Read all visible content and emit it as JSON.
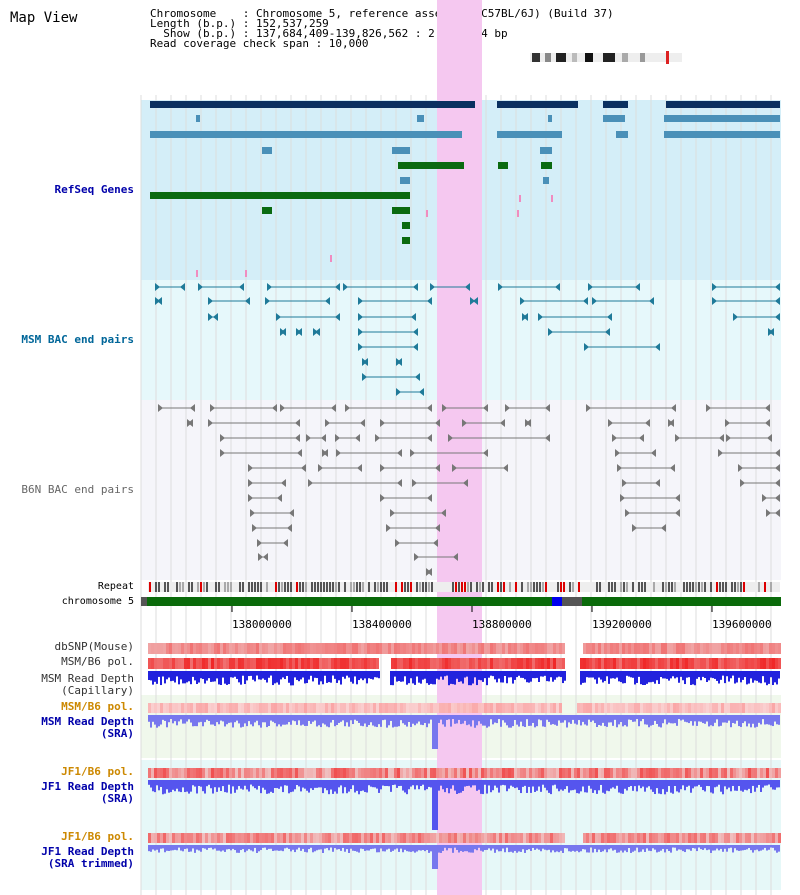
{
  "header": {
    "title": "Map View",
    "info_lines": [
      "Chromosome    : Chromosome 5, reference assembly (C57BL/6J) (Build 37)",
      "Length (b.p.) : 152,537,259",
      "  Show (b.p.) : 137,684,409-139,826,562 : 2,142,154 bp",
      "Read coverage check span : 10,000"
    ]
  },
  "tracks": {
    "refseq": {
      "label": "RefSeq Genes",
      "color": "#0000aa"
    },
    "msm_bac": {
      "label": "MSM BAC end pairs",
      "color": "#006699"
    },
    "b6n_bac": {
      "label": "B6N BAC end pairs",
      "color": "#555555"
    },
    "repeat": {
      "label": "Repeat",
      "color": "#000000"
    },
    "chromosome": {
      "label": "chromosome 5",
      "color": "#000000"
    },
    "dbsnp": {
      "label": "dbSNP(Mouse)",
      "color": "#333333"
    },
    "msm_b6_pol": {
      "label": "MSM/B6 pol.",
      "color": "#333333"
    },
    "msm_read_depth_cap": {
      "label": "MSM Read Depth\n(Capillary)",
      "color": "#333333"
    },
    "msm_b6_pol_sra": {
      "label": "MSM/B6 pol.",
      "color": "#cc8800"
    },
    "msm_read_depth_sra": {
      "label": "MSM Read Depth\n(SRA)",
      "color": "#0000aa"
    },
    "jf1_b6_pol_sra": {
      "label": "JF1/B6 pol.",
      "color": "#cc8800"
    },
    "jf1_read_depth_sra": {
      "label": "JF1 Read Depth\n(SRA)",
      "color": "#0000aa"
    },
    "jf1_b6_pol_trim": {
      "label": "JF1/B6 pol.",
      "color": "#cc8800"
    },
    "jf1_read_depth_trim": {
      "label": "JF1 Read Depth\n(SRA trimmed)",
      "color": "#0000aa"
    }
  },
  "axis": {
    "ticks": [
      "138000000",
      "138400000",
      "138800000",
      "139200000",
      "139600000"
    ]
  },
  "colors": {
    "refseq_dark": "#0a3060",
    "refseq_mid": "#4a90b8",
    "refseq_green": "#0a6a10",
    "highlight": "#f5c8f0",
    "chrom_green": "#0a6a0a",
    "depth_blue": "#2222dd",
    "depth_light": "#8888ee"
  }
}
